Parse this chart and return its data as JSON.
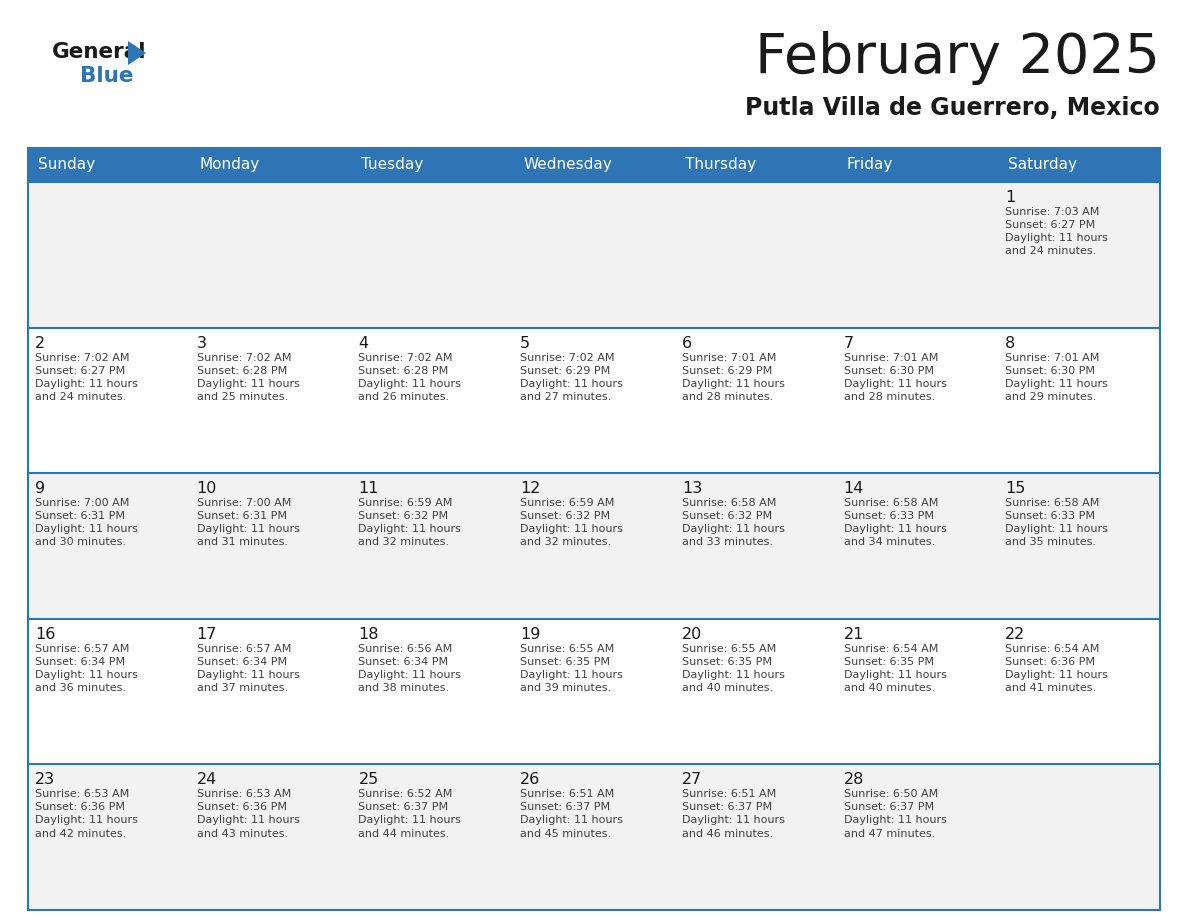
{
  "title": "February 2025",
  "subtitle": "Putla Villa de Guerrero, Mexico",
  "header_bg": "#2E75B6",
  "header_text_color": "#FFFFFF",
  "day_names": [
    "Sunday",
    "Monday",
    "Tuesday",
    "Wednesday",
    "Thursday",
    "Friday",
    "Saturday"
  ],
  "row_bg_even": "#F2F2F2",
  "row_bg_odd": "#FFFFFF",
  "cell_border_color": "#2E75B6",
  "day_num_color": "#000000",
  "info_text_color": "#404040",
  "calendar_data": [
    [
      null,
      null,
      null,
      null,
      null,
      null,
      {
        "day": 1,
        "sunrise": "7:03 AM",
        "sunset": "6:27 PM",
        "daylight": "11 hours\nand 24 minutes."
      }
    ],
    [
      {
        "day": 2,
        "sunrise": "7:02 AM",
        "sunset": "6:27 PM",
        "daylight": "11 hours\nand 24 minutes."
      },
      {
        "day": 3,
        "sunrise": "7:02 AM",
        "sunset": "6:28 PM",
        "daylight": "11 hours\nand 25 minutes."
      },
      {
        "day": 4,
        "sunrise": "7:02 AM",
        "sunset": "6:28 PM",
        "daylight": "11 hours\nand 26 minutes."
      },
      {
        "day": 5,
        "sunrise": "7:02 AM",
        "sunset": "6:29 PM",
        "daylight": "11 hours\nand 27 minutes."
      },
      {
        "day": 6,
        "sunrise": "7:01 AM",
        "sunset": "6:29 PM",
        "daylight": "11 hours\nand 28 minutes."
      },
      {
        "day": 7,
        "sunrise": "7:01 AM",
        "sunset": "6:30 PM",
        "daylight": "11 hours\nand 28 minutes."
      },
      {
        "day": 8,
        "sunrise": "7:01 AM",
        "sunset": "6:30 PM",
        "daylight": "11 hours\nand 29 minutes."
      }
    ],
    [
      {
        "day": 9,
        "sunrise": "7:00 AM",
        "sunset": "6:31 PM",
        "daylight": "11 hours\nand 30 minutes."
      },
      {
        "day": 10,
        "sunrise": "7:00 AM",
        "sunset": "6:31 PM",
        "daylight": "11 hours\nand 31 minutes."
      },
      {
        "day": 11,
        "sunrise": "6:59 AM",
        "sunset": "6:32 PM",
        "daylight": "11 hours\nand 32 minutes."
      },
      {
        "day": 12,
        "sunrise": "6:59 AM",
        "sunset": "6:32 PM",
        "daylight": "11 hours\nand 32 minutes."
      },
      {
        "day": 13,
        "sunrise": "6:58 AM",
        "sunset": "6:32 PM",
        "daylight": "11 hours\nand 33 minutes."
      },
      {
        "day": 14,
        "sunrise": "6:58 AM",
        "sunset": "6:33 PM",
        "daylight": "11 hours\nand 34 minutes."
      },
      {
        "day": 15,
        "sunrise": "6:58 AM",
        "sunset": "6:33 PM",
        "daylight": "11 hours\nand 35 minutes."
      }
    ],
    [
      {
        "day": 16,
        "sunrise": "6:57 AM",
        "sunset": "6:34 PM",
        "daylight": "11 hours\nand 36 minutes."
      },
      {
        "day": 17,
        "sunrise": "6:57 AM",
        "sunset": "6:34 PM",
        "daylight": "11 hours\nand 37 minutes."
      },
      {
        "day": 18,
        "sunrise": "6:56 AM",
        "sunset": "6:34 PM",
        "daylight": "11 hours\nand 38 minutes."
      },
      {
        "day": 19,
        "sunrise": "6:55 AM",
        "sunset": "6:35 PM",
        "daylight": "11 hours\nand 39 minutes."
      },
      {
        "day": 20,
        "sunrise": "6:55 AM",
        "sunset": "6:35 PM",
        "daylight": "11 hours\nand 40 minutes."
      },
      {
        "day": 21,
        "sunrise": "6:54 AM",
        "sunset": "6:35 PM",
        "daylight": "11 hours\nand 40 minutes."
      },
      {
        "day": 22,
        "sunrise": "6:54 AM",
        "sunset": "6:36 PM",
        "daylight": "11 hours\nand 41 minutes."
      }
    ],
    [
      {
        "day": 23,
        "sunrise": "6:53 AM",
        "sunset": "6:36 PM",
        "daylight": "11 hours\nand 42 minutes."
      },
      {
        "day": 24,
        "sunrise": "6:53 AM",
        "sunset": "6:36 PM",
        "daylight": "11 hours\nand 43 minutes."
      },
      {
        "day": 25,
        "sunrise": "6:52 AM",
        "sunset": "6:37 PM",
        "daylight": "11 hours\nand 44 minutes."
      },
      {
        "day": 26,
        "sunrise": "6:51 AM",
        "sunset": "6:37 PM",
        "daylight": "11 hours\nand 45 minutes."
      },
      {
        "day": 27,
        "sunrise": "6:51 AM",
        "sunset": "6:37 PM",
        "daylight": "11 hours\nand 46 minutes."
      },
      {
        "day": 28,
        "sunrise": "6:50 AM",
        "sunset": "6:37 PM",
        "daylight": "11 hours\nand 47 minutes."
      },
      null
    ]
  ]
}
